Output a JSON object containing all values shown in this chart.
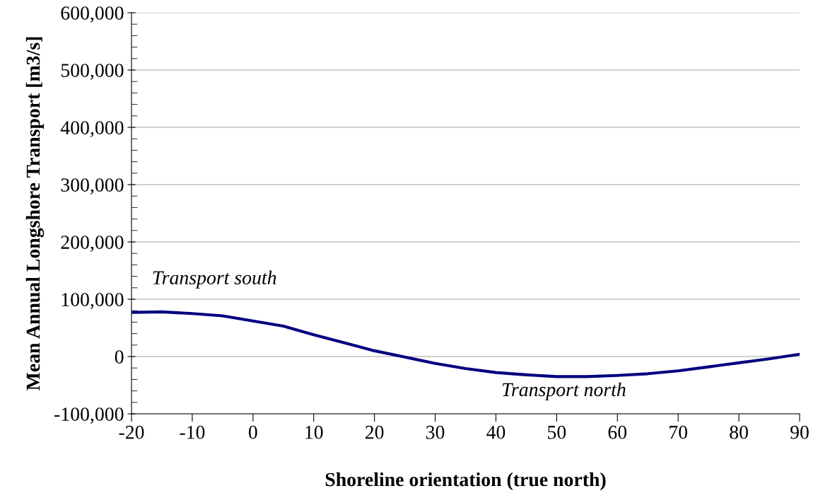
{
  "chart_data": {
    "type": "line",
    "xlabel": "Shoreline orientation (true north)",
    "ylabel": "Mean Annual Longshore Transport [m3/s]",
    "x": [
      -20,
      -15,
      -10,
      -5,
      0,
      5,
      10,
      15,
      20,
      25,
      30,
      35,
      40,
      45,
      50,
      55,
      60,
      65,
      70,
      75,
      80,
      85,
      90
    ],
    "series": [
      {
        "color": "#000080",
        "values": [
          77000,
          78000,
          75000,
          71000,
          62000,
          53000,
          38000,
          24000,
          10000,
          -1000,
          -12000,
          -21000,
          -28000,
          -32000,
          -35000,
          -35000,
          -33000,
          -30000,
          -25000,
          -18000,
          -11000,
          -4000,
          4000
        ]
      }
    ],
    "xlim": [
      -20,
      90
    ],
    "xticks": [
      -20,
      -10,
      0,
      10,
      20,
      30,
      40,
      50,
      60,
      70,
      80,
      90
    ],
    "ylim": [
      -100000,
      600000
    ],
    "yticks": [
      {
        "value": -100000,
        "label": "-100,000"
      },
      {
        "value": 0,
        "label": "0"
      },
      {
        "value": 100000,
        "label": "100,000"
      },
      {
        "value": 200000,
        "label": "200,000"
      },
      {
        "value": 300000,
        "label": "300,000"
      },
      {
        "value": 400000,
        "label": "400,000"
      },
      {
        "value": 500000,
        "label": "500,000"
      },
      {
        "value": 600000,
        "label": "600,000"
      }
    ],
    "grid": "y",
    "marker": "none",
    "line_style": "solid",
    "annotations": [
      "Transport south",
      "Transport north"
    ]
  }
}
